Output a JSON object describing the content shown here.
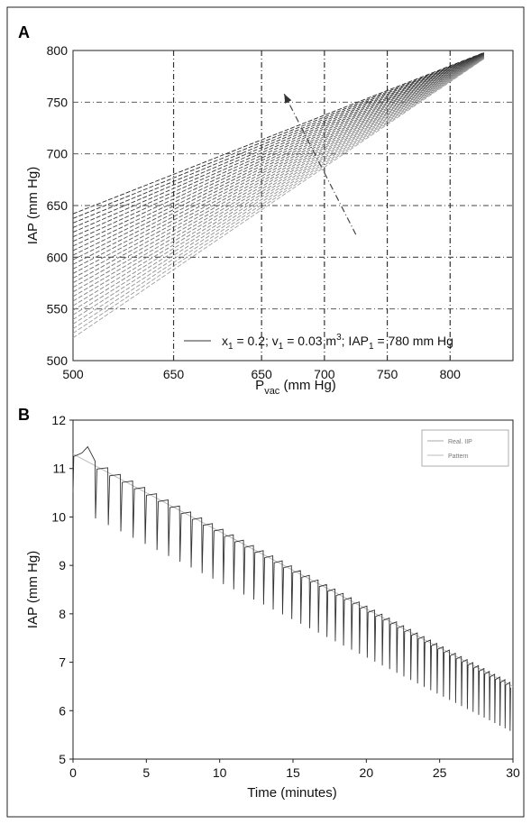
{
  "chart_data": [
    {
      "panel": "A",
      "type": "line",
      "xlabel": "P",
      "xlabel_sub": "vac",
      "xlabel_unit": " (mm Hg)",
      "ylabel": "IAP (mm Hg)",
      "x_tick_labels": [
        "500",
        "650",
        "650",
        "700",
        "750",
        "800"
      ],
      "y_tick_labels": [
        "500",
        "550",
        "600",
        "650",
        "700",
        "750",
        "800"
      ],
      "xlim": [
        500,
        850
      ],
      "ylim": [
        500,
        800
      ],
      "grid": true,
      "legend_position": "bottom-right",
      "legend": {
        "p1": "x",
        "s1": "1",
        "p2": " = 0.2; v",
        "s2": "1",
        "p3": " = 0.03 m",
        "sup": "3",
        "p4": "; IAP",
        "s4": "1",
        "p5": " = 780 mm Hg"
      },
      "series_family": {
        "count": 28,
        "convergence_point": {
          "x": 827,
          "y": 795
        },
        "start_x": 500,
        "start_y_range": [
          522,
          642
        ]
      },
      "arrow": {
        "from": {
          "x": 725,
          "y": 622
        },
        "to": {
          "x": 668,
          "y": 758
        }
      }
    },
    {
      "panel": "B",
      "type": "line",
      "xlabel": "Time (minutes)",
      "ylabel": "IAP (mm Hg)",
      "x": [
        0,
        5,
        10,
        15,
        20,
        25,
        30
      ],
      "y_ticks": [
        5,
        6,
        7,
        8,
        9,
        10,
        11,
        12
      ],
      "xlim": [
        0,
        30
      ],
      "ylim": [
        5,
        12
      ],
      "grid": false,
      "legend_position": "top-right",
      "legend_entries": [
        "Real. IIP",
        "Pattern"
      ],
      "trend": {
        "start": [
          0,
          11.3
        ],
        "end": [
          30,
          6.5
        ]
      },
      "cycles": {
        "period_start": 0.9,
        "period_end": 0.33,
        "first_cycle_x": 1.5,
        "drop_start": 1.2,
        "drop_end": 1.0
      }
    }
  ]
}
